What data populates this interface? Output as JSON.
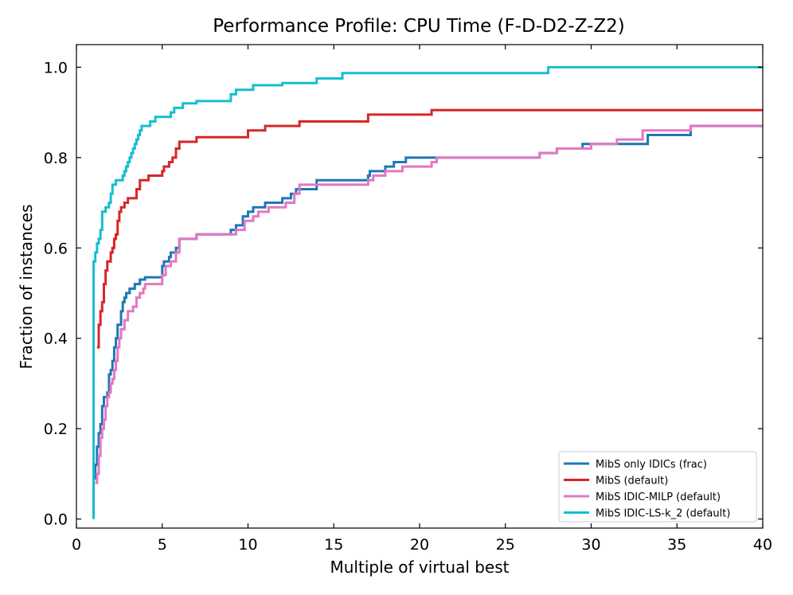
{
  "chart_data": {
    "type": "line",
    "step": true,
    "title": "Performance Profile: CPU Time (F-D-D2-Z-Z2)",
    "xlabel": "Multiple of virtual best",
    "ylabel": "Fraction of instances",
    "xlim": [
      0,
      40
    ],
    "ylim": [
      -0.02,
      1.05
    ],
    "xticks": [
      0,
      5,
      10,
      15,
      20,
      25,
      30,
      35,
      40
    ],
    "xtick_labels": [
      "0",
      "5",
      "10",
      "15",
      "20",
      "25",
      "30",
      "35",
      "40"
    ],
    "yticks": [
      0.0,
      0.2,
      0.4,
      0.6,
      0.8,
      1.0
    ],
    "ytick_labels": [
      "0.0",
      "0.2",
      "0.4",
      "0.6",
      "0.8",
      "1.0"
    ],
    "grid": false,
    "legend_position": "bottom-right",
    "series": [
      {
        "name": "MibS only IDICs (frac)",
        "color": "#1f77b4",
        "points": [
          [
            1.0,
            0.0
          ],
          [
            1.0,
            0.09
          ],
          [
            1.1,
            0.12
          ],
          [
            1.2,
            0.16
          ],
          [
            1.3,
            0.19
          ],
          [
            1.4,
            0.21
          ],
          [
            1.5,
            0.25
          ],
          [
            1.6,
            0.27
          ],
          [
            1.8,
            0.28
          ],
          [
            1.9,
            0.32
          ],
          [
            2.0,
            0.33
          ],
          [
            2.1,
            0.35
          ],
          [
            2.2,
            0.38
          ],
          [
            2.3,
            0.4
          ],
          [
            2.4,
            0.43
          ],
          [
            2.6,
            0.46
          ],
          [
            2.7,
            0.48
          ],
          [
            2.8,
            0.49
          ],
          [
            2.9,
            0.5
          ],
          [
            3.1,
            0.51
          ],
          [
            3.4,
            0.52
          ],
          [
            3.7,
            0.53
          ],
          [
            4.0,
            0.535
          ],
          [
            5.0,
            0.56
          ],
          [
            5.1,
            0.57
          ],
          [
            5.4,
            0.58
          ],
          [
            5.5,
            0.59
          ],
          [
            5.8,
            0.6
          ],
          [
            6.0,
            0.62
          ],
          [
            7.0,
            0.63
          ],
          [
            9.0,
            0.64
          ],
          [
            9.3,
            0.65
          ],
          [
            9.7,
            0.67
          ],
          [
            10.0,
            0.68
          ],
          [
            10.3,
            0.69
          ],
          [
            11.0,
            0.7
          ],
          [
            12.0,
            0.71
          ],
          [
            12.5,
            0.72
          ],
          [
            12.8,
            0.73
          ],
          [
            14.0,
            0.75
          ],
          [
            17.0,
            0.76
          ],
          [
            17.1,
            0.77
          ],
          [
            18.0,
            0.78
          ],
          [
            18.5,
            0.79
          ],
          [
            19.2,
            0.8
          ],
          [
            20.7,
            0.8
          ],
          [
            21.0,
            0.8
          ],
          [
            27.0,
            0.81
          ],
          [
            28.0,
            0.82
          ],
          [
            29.5,
            0.83
          ],
          [
            33.3,
            0.85
          ],
          [
            35.8,
            0.87
          ],
          [
            40.0,
            0.87
          ]
        ]
      },
      {
        "name": "MibS (default)",
        "color": "#d62728",
        "points": [
          [
            1.2,
            0.38
          ],
          [
            1.3,
            0.43
          ],
          [
            1.4,
            0.46
          ],
          [
            1.5,
            0.48
          ],
          [
            1.6,
            0.52
          ],
          [
            1.7,
            0.55
          ],
          [
            1.8,
            0.57
          ],
          [
            2.0,
            0.59
          ],
          [
            2.1,
            0.6
          ],
          [
            2.2,
            0.62
          ],
          [
            2.3,
            0.63
          ],
          [
            2.4,
            0.66
          ],
          [
            2.5,
            0.68
          ],
          [
            2.6,
            0.69
          ],
          [
            2.8,
            0.7
          ],
          [
            3.0,
            0.71
          ],
          [
            3.5,
            0.73
          ],
          [
            3.7,
            0.75
          ],
          [
            4.2,
            0.76
          ],
          [
            5.0,
            0.77
          ],
          [
            5.1,
            0.78
          ],
          [
            5.4,
            0.79
          ],
          [
            5.6,
            0.8
          ],
          [
            5.8,
            0.82
          ],
          [
            6.0,
            0.835
          ],
          [
            7.0,
            0.845
          ],
          [
            10.0,
            0.86
          ],
          [
            11.0,
            0.87
          ],
          [
            13.0,
            0.88
          ],
          [
            17.0,
            0.895
          ],
          [
            20.7,
            0.905
          ],
          [
            40.0,
            0.905
          ]
        ]
      },
      {
        "name": "MibS IDIC-MILP (default)",
        "color": "#e377c2",
        "points": [
          [
            1.1,
            0.08
          ],
          [
            1.2,
            0.1
          ],
          [
            1.3,
            0.14
          ],
          [
            1.4,
            0.18
          ],
          [
            1.5,
            0.2
          ],
          [
            1.6,
            0.22
          ],
          [
            1.7,
            0.25
          ],
          [
            1.8,
            0.27
          ],
          [
            1.9,
            0.28
          ],
          [
            2.0,
            0.3
          ],
          [
            2.1,
            0.31
          ],
          [
            2.2,
            0.33
          ],
          [
            2.3,
            0.35
          ],
          [
            2.4,
            0.38
          ],
          [
            2.5,
            0.4
          ],
          [
            2.6,
            0.42
          ],
          [
            2.8,
            0.44
          ],
          [
            3.0,
            0.46
          ],
          [
            3.3,
            0.47
          ],
          [
            3.5,
            0.49
          ],
          [
            3.7,
            0.5
          ],
          [
            3.9,
            0.51
          ],
          [
            4.0,
            0.52
          ],
          [
            5.0,
            0.54
          ],
          [
            5.2,
            0.56
          ],
          [
            5.5,
            0.57
          ],
          [
            5.8,
            0.59
          ],
          [
            6.0,
            0.62
          ],
          [
            7.0,
            0.63
          ],
          [
            9.3,
            0.64
          ],
          [
            9.8,
            0.66
          ],
          [
            10.3,
            0.67
          ],
          [
            10.6,
            0.68
          ],
          [
            11.2,
            0.69
          ],
          [
            12.2,
            0.7
          ],
          [
            12.7,
            0.72
          ],
          [
            13.0,
            0.74
          ],
          [
            17.0,
            0.75
          ],
          [
            17.3,
            0.76
          ],
          [
            18.0,
            0.77
          ],
          [
            19.0,
            0.78
          ],
          [
            20.7,
            0.79
          ],
          [
            21.0,
            0.8
          ],
          [
            27.0,
            0.81
          ],
          [
            28.0,
            0.82
          ],
          [
            30.0,
            0.83
          ],
          [
            31.5,
            0.84
          ],
          [
            33.0,
            0.86
          ],
          [
            35.8,
            0.87
          ],
          [
            40.0,
            0.87
          ]
        ]
      },
      {
        "name": "MibS IDIC-LS-k_2 (default)",
        "color": "#17becf",
        "points": [
          [
            1.0,
            0.0
          ],
          [
            1.0,
            0.57
          ],
          [
            1.1,
            0.59
          ],
          [
            1.2,
            0.61
          ],
          [
            1.3,
            0.62
          ],
          [
            1.4,
            0.64
          ],
          [
            1.5,
            0.68
          ],
          [
            1.7,
            0.69
          ],
          [
            1.9,
            0.7
          ],
          [
            2.0,
            0.72
          ],
          [
            2.1,
            0.74
          ],
          [
            2.3,
            0.75
          ],
          [
            2.7,
            0.76
          ],
          [
            2.8,
            0.77
          ],
          [
            2.9,
            0.78
          ],
          [
            3.0,
            0.79
          ],
          [
            3.1,
            0.8
          ],
          [
            3.2,
            0.81
          ],
          [
            3.3,
            0.82
          ],
          [
            3.4,
            0.83
          ],
          [
            3.5,
            0.84
          ],
          [
            3.6,
            0.85
          ],
          [
            3.7,
            0.86
          ],
          [
            3.8,
            0.87
          ],
          [
            4.2,
            0.87
          ],
          [
            4.3,
            0.88
          ],
          [
            4.6,
            0.89
          ],
          [
            5.0,
            0.89
          ],
          [
            5.5,
            0.9
          ],
          [
            5.7,
            0.91
          ],
          [
            6.2,
            0.92
          ],
          [
            7.0,
            0.925
          ],
          [
            9.0,
            0.94
          ],
          [
            9.3,
            0.95
          ],
          [
            10.3,
            0.96
          ],
          [
            12.0,
            0.965
          ],
          [
            14.0,
            0.975
          ],
          [
            15.5,
            0.987
          ],
          [
            27.5,
            1.0
          ],
          [
            40.0,
            1.0
          ]
        ]
      }
    ]
  }
}
